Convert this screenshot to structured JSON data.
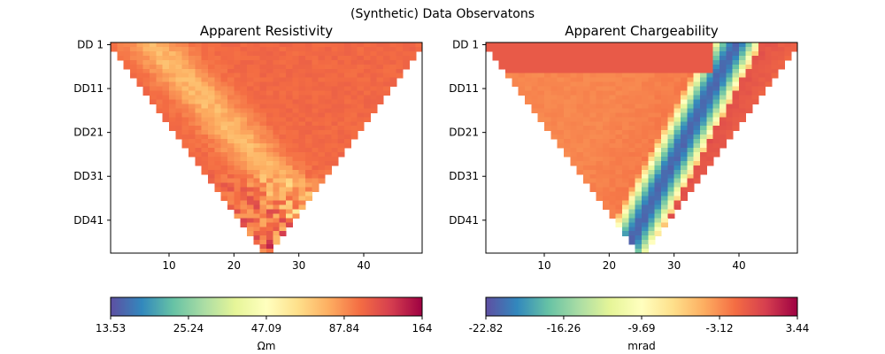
{
  "figure_title": "(Synthetic) Data Observatons",
  "colormap": [
    "#5e4fa2",
    "#3288bd",
    "#66c2a5",
    "#abdda4",
    "#e6f598",
    "#ffffbf",
    "#fee08b",
    "#fdae61",
    "#f46d43",
    "#d53e4f",
    "#9e0142"
  ],
  "chart_data": [
    {
      "type": "heatmap",
      "title": "Apparent Resistivity",
      "xlim": [
        1,
        49
      ],
      "x_ticks": [
        "10",
        "20",
        "30",
        "40"
      ],
      "x_tick_values": [
        10,
        20,
        30,
        40
      ],
      "ylim": [
        1,
        48
      ],
      "y_ticks": [
        "DD 1",
        "DD11",
        "DD21",
        "DD31",
        "DD41"
      ],
      "y_tick_values": [
        1,
        11,
        21,
        31,
        41
      ],
      "pseudosection": {
        "rows": 48,
        "first_row_x": [
          1,
          49
        ],
        "apex_x": 25
      },
      "colorbar": {
        "label": "Ωm",
        "scale": "log",
        "tick_labels": [
          "13.53",
          "25.24",
          "47.09",
          "87.84",
          "164"
        ],
        "tick_values": [
          13.53,
          25.24,
          47.09,
          87.84,
          164
        ]
      },
      "pattern": "resistivity"
    },
    {
      "type": "heatmap",
      "title": "Apparent Chargeability",
      "xlim": [
        1,
        49
      ],
      "x_ticks": [
        "10",
        "20",
        "30",
        "40"
      ],
      "x_tick_values": [
        10,
        20,
        30,
        40
      ],
      "ylim": [
        1,
        48
      ],
      "y_ticks": [
        "DD 1",
        "DD11",
        "DD21",
        "DD31",
        "DD41"
      ],
      "y_tick_values": [
        1,
        11,
        21,
        31,
        41
      ],
      "pseudosection": {
        "rows": 48,
        "first_row_x": [
          1,
          49
        ],
        "apex_x": 25
      },
      "colorbar": {
        "label": "mrad",
        "scale": "linear",
        "tick_labels": [
          "-22.82",
          "-16.26",
          "-9.69",
          "-3.12",
          "3.44"
        ],
        "tick_values": [
          -22.82,
          -16.26,
          -9.69,
          -3.12,
          3.44
        ]
      },
      "pattern": "chargeability"
    }
  ]
}
